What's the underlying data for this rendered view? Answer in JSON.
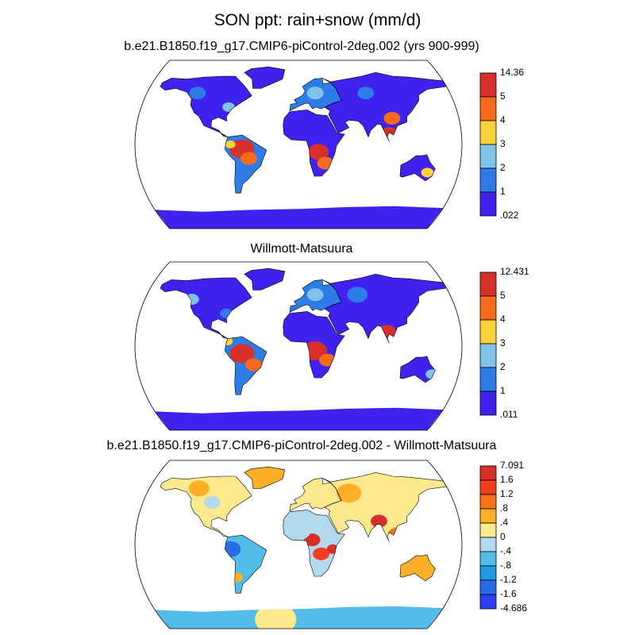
{
  "figure": {
    "title": "SON ppt: rain+snow (mm/d)"
  },
  "panels": [
    {
      "title": "b.e21.B1850.f19_g17.CMIP6-piControl-2deg.002 (yrs 900-999)",
      "colorbar": {
        "labels": [
          "14.36",
          "5",
          "4",
          "3",
          "2",
          "1",
          ".022"
        ],
        "colors": [
          "#d7302b",
          "#f76b1b",
          "#fdd138",
          "#7fc3ea",
          "#2e7ce8",
          "#3f22ef"
        ]
      }
    },
    {
      "title": "Willmott-Matsuura",
      "colorbar": {
        "labels": [
          "12.431",
          "5",
          "4",
          "3",
          "2",
          "1",
          ".011"
        ],
        "colors": [
          "#d7302b",
          "#f76b1b",
          "#fdd138",
          "#7fc3ea",
          "#2e7ce8",
          "#3f22ef"
        ]
      }
    },
    {
      "title": "b.e21.B1850.f19_g17.CMIP6-piControl-2deg.002 - Willmott-Matsuura",
      "colorbar": {
        "labels": [
          "7.091",
          "1.6",
          "1.2",
          ".8",
          ".4",
          "0",
          "-.4",
          "-.8",
          "-1.2",
          "-1.6",
          "-4.686"
        ],
        "colors": [
          "#d7302b",
          "#f2401f",
          "#f87217",
          "#fdb027",
          "#fde98d",
          "#b3d9ef",
          "#52bde9",
          "#1e9ae0",
          "#2a6be8",
          "#2d3ff0"
        ]
      }
    }
  ]
}
